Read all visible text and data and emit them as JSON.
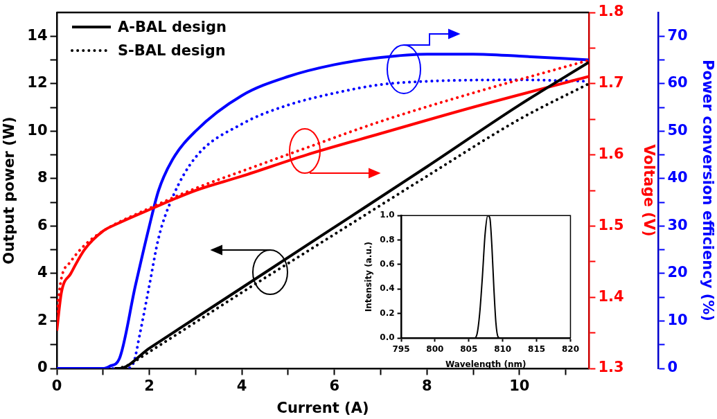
{
  "chart_data": [
    {
      "type": "line",
      "xlabel": "Current (A)",
      "ylabel": "Output power (W)",
      "y2label": "Voltage (V)",
      "y3label": "Power conversion efficiency (%)",
      "xlim": [
        0,
        11.5
      ],
      "xticks": [
        0,
        {
          "value": 1,
          "label": null
        },
        2,
        {
          "value": 3,
          "label": null
        },
        4,
        {
          "value": 5,
          "label": null
        },
        6,
        {
          "value": 7,
          "label": null
        },
        8,
        {
          "value": 9,
          "label": null
        },
        10,
        {
          "value": 11,
          "label": null
        }
      ],
      "ylim": [
        0,
        15
      ],
      "yticks": [
        0,
        {
          "value": 1,
          "label": null
        },
        2,
        {
          "value": 3,
          "label": null
        },
        4,
        {
          "value": 5,
          "label": null
        },
        6,
        {
          "value": 7,
          "label": null
        },
        8,
        {
          "value": 9,
          "label": null
        },
        10,
        {
          "value": 11,
          "label": null
        },
        12,
        {
          "value": 13,
          "label": null
        },
        14
      ],
      "y2lim": [
        1.3,
        1.8
      ],
      "y2ticks": [
        1.3,
        {
          "value": 1.35,
          "label": null
        },
        1.4,
        {
          "value": 1.45,
          "label": null
        },
        1.5,
        {
          "value": 1.55,
          "label": null
        },
        1.6,
        {
          "value": 1.65,
          "label": null
        },
        1.7,
        {
          "value": 1.75,
          "label": null
        },
        1.8
      ],
      "y3lim": [
        0,
        75
      ],
      "y3ticks": [
        0,
        {
          "value": 5,
          "label": null
        },
        10,
        {
          "value": 15,
          "label": null
        },
        20,
        {
          "value": 25,
          "label": null
        },
        30,
        {
          "value": 35,
          "label": null
        },
        40,
        {
          "value": 45,
          "label": null
        },
        50,
        {
          "value": 55,
          "label": null
        },
        60,
        {
          "value": 65,
          "label": null
        },
        70
      ],
      "grid": false,
      "legend": "top left",
      "marker": "none",
      "series": [
        {
          "name": "A-BAL design",
          "color": "#000000",
          "line_style": "solid",
          "x": [
            1.25,
            1.35,
            2,
            4,
            6,
            8,
            10,
            11.5
          ],
          "values": [
            0,
            0,
            0.85,
            3.4,
            5.95,
            8.5,
            11.1,
            12.9
          ]
        },
        {
          "name": "S-BAL design",
          "color": "#000000",
          "line_style": "dotted",
          "x": [
            1.3,
            1.5,
            2,
            4,
            6,
            8,
            10,
            11.5
          ],
          "values": [
            0,
            0.1,
            0.7,
            3.2,
            5.65,
            8.1,
            10.5,
            12.0
          ]
        },
        {
          "color": "#ff0000",
          "line_style": "solid",
          "axis": "y2",
          "x": [
            0,
            0.1,
            0.3,
            0.6,
            1,
            1.3,
            2,
            3,
            4,
            5.4,
            7,
            9,
            11.5
          ],
          "values": [
            1.353,
            1.407,
            1.433,
            1.467,
            1.493,
            1.503,
            1.523,
            1.55,
            1.57,
            1.6,
            1.63,
            1.667,
            1.71
          ]
        },
        {
          "color": "#ff0000",
          "line_style": "dotted",
          "axis": "y2",
          "x": [
            0,
            0.1,
            0.3,
            0.6,
            1,
            2,
            3,
            4,
            5.4,
            7,
            9,
            11.5
          ],
          "values": [
            1.38,
            1.427,
            1.45,
            1.473,
            1.493,
            1.525,
            1.553,
            1.577,
            1.61,
            1.647,
            1.687,
            1.733
          ]
        },
        {
          "color": "#0000ff",
          "line_style": "solid",
          "axis": "y3",
          "x": [
            0,
            1,
            1.15,
            1.35,
            1.7,
            2,
            2.2,
            2.5,
            3,
            4,
            5,
            6,
            7,
            8,
            9,
            10,
            11.5
          ],
          "values": [
            0,
            0,
            0.5,
            2,
            17.5,
            30,
            37.5,
            44,
            50,
            57.5,
            61.5,
            64,
            65.5,
            66.2,
            66.2,
            65.8,
            65
          ]
        },
        {
          "color": "#0000ff",
          "line_style": "dotted",
          "axis": "y3",
          "x": [
            0,
            1.5,
            1.65,
            1.8,
            2,
            2.2,
            2.5,
            3,
            4,
            5,
            6,
            7,
            8,
            10,
            11.5
          ],
          "values": [
            0,
            0,
            1,
            7.5,
            17.5,
            27.5,
            36,
            44.5,
            51.5,
            55.5,
            58,
            59.8,
            60.5,
            60.8,
            60.5
          ]
        }
      ]
    },
    {
      "type": "line",
      "xlabel": "Wavelength (nm)",
      "ylabel": "Intensity (a.u.)",
      "xlim": [
        795,
        820
      ],
      "xticks": [
        795,
        800,
        805,
        810,
        815,
        820
      ],
      "ylim": [
        0,
        1
      ],
      "yticks": [
        {
          "value": 0,
          "label": "0.0"
        },
        0.2,
        0.4,
        0.6,
        0.8,
        {
          "value": 1,
          "label": "1.0"
        }
      ],
      "grid": false,
      "marker": "none",
      "series": [
        {
          "color": "#000000",
          "line_style": "solid",
          "x": [
            795,
            805.8,
            806.2,
            806.6,
            807,
            807.4,
            807.8,
            808.1,
            808.4,
            808.7,
            809,
            809.3,
            809.6,
            820
          ],
          "values": [
            0,
            0,
            0.03,
            0.2,
            0.5,
            0.85,
            1.0,
            0.98,
            0.75,
            0.4,
            0.12,
            0.01,
            0,
            0
          ]
        }
      ]
    }
  ]
}
